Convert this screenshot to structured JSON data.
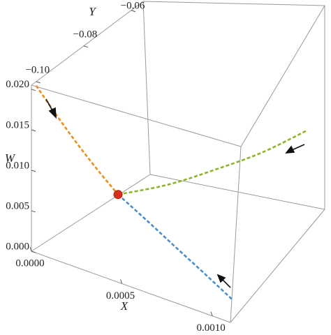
{
  "chart_data": {
    "type": "line3d",
    "xlabel": "X",
    "ylabel": "Y",
    "zlabel": "W",
    "xlim": [
      0,
      0.0011
    ],
    "ylim": [
      -0.102,
      -0.055
    ],
    "zlim": [
      0,
      0.0205
    ],
    "xticks": [
      {
        "value": 0,
        "label": "0.0000"
      },
      {
        "value": 0.0005,
        "label": "0.0005"
      },
      {
        "value": 0.001,
        "label": "0.0010"
      }
    ],
    "yticks": [
      {
        "value": -0.1,
        "label": "−0.10"
      },
      {
        "value": -0.08,
        "label": "−0.08"
      },
      {
        "value": -0.06,
        "label": "−0.06"
      }
    ],
    "zticks": [
      {
        "value": 0,
        "label": "0.000"
      },
      {
        "value": 0.005,
        "label": "0.005"
      },
      {
        "value": 0.01,
        "label": "0.010"
      },
      {
        "value": 0.015,
        "label": "0.015"
      },
      {
        "value": 0.02,
        "label": "0.020"
      }
    ],
    "series": [
      {
        "color": "#e8901a",
        "x": [
          0,
          0.0001,
          0.0002,
          0.0003,
          0.0004
        ],
        "y": [
          -0.1,
          -0.0992,
          -0.0983,
          -0.0974,
          -0.0964
        ],
        "z": [
          0.02,
          0.0168,
          0.0138,
          0.0111,
          0.0086
        ]
      },
      {
        "color": "#4a8ec8",
        "x": [
          0.0004,
          0.00057,
          0.00074,
          0.00091,
          0.00108
        ],
        "y": [
          -0.0964,
          -0.0973,
          -0.0982,
          -0.0991,
          -0.1
        ],
        "z": [
          0.0086,
          0.0069,
          0.0052,
          0.0036,
          0.002
        ]
      },
      {
        "color": "#8db52a",
        "x": [
          0.0004,
          0.00058,
          0.00075,
          0.00093,
          0.0011
        ],
        "y": [
          -0.0964,
          -0.0885,
          -0.0805,
          -0.0725,
          -0.0644
        ],
        "z": [
          0.0086,
          0.0089,
          0.0094,
          0.0099,
          0.0105
        ]
      }
    ],
    "point": {
      "color": "#d9301e",
      "x": 0.0004,
      "y": -0.0964,
      "z": 0.0086
    }
  }
}
